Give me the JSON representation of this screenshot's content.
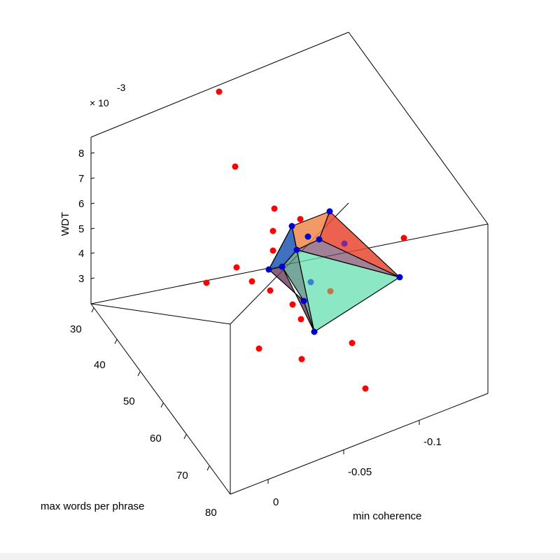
{
  "chart_data": {
    "type": "scatter",
    "view": "3d",
    "axes": {
      "x": {
        "label": "min coherence",
        "ticks": [
          0,
          -0.05,
          -0.1
        ],
        "tick_labels": [
          "0",
          "-0.05",
          "-0.1"
        ]
      },
      "y": {
        "label": "max words per phrase",
        "ticks": [
          30,
          40,
          50,
          60,
          70,
          80
        ],
        "tick_labels": [
          "30",
          "40",
          "50",
          "60",
          "70",
          "80"
        ]
      },
      "z": {
        "label": "WDT",
        "ticks": [
          3,
          4,
          5,
          6,
          7,
          8
        ],
        "tick_labels": [
          "3",
          "4",
          "5",
          "6",
          "7",
          "8"
        ],
        "exponent_base": "× 10",
        "exponent_power": "-3"
      }
    },
    "series": [
      {
        "marker_color": "#ff0000",
        "points": [
          [
            313,
            131
          ],
          [
            336,
            238
          ],
          [
            392,
            298
          ],
          [
            429,
            313
          ],
          [
            390,
            330
          ],
          [
            390,
            358
          ],
          [
            338,
            382
          ],
          [
            360,
            402
          ],
          [
            386,
            415
          ],
          [
            295,
            404
          ],
          [
            418,
            435
          ],
          [
            430,
            456
          ],
          [
            370,
            498
          ],
          [
            431,
            513
          ],
          [
            503,
            490
          ],
          [
            522,
            555
          ],
          [
            577,
            340
          ]
        ]
      },
      {
        "marker_color": "#0000cc",
        "points": [
          [
            471,
            302
          ],
          [
            417,
            323
          ],
          [
            456,
            342
          ],
          [
            424,
            357
          ],
          [
            384,
            385
          ],
          [
            403,
            381
          ],
          [
            434,
            430
          ],
          [
            449,
            474
          ],
          [
            571,
            396
          ],
          [
            440,
            338
          ]
        ]
      }
    ],
    "interior_points": [
      {
        "color": "#7a2a9a",
        "p": [
          492,
          348
        ]
      },
      {
        "color": "#3a7fd0",
        "p": [
          444,
          403
        ]
      },
      {
        "color": "#c07840",
        "p": [
          472,
          416
        ]
      }
    ]
  }
}
